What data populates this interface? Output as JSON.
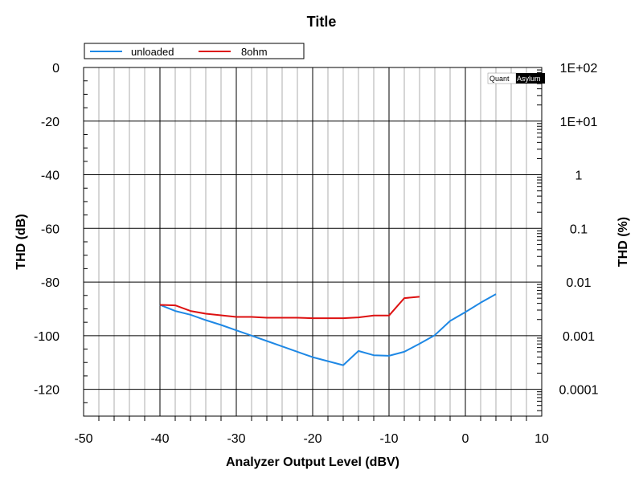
{
  "chart_data": {
    "type": "line",
    "title": "Title",
    "xlabel": "Analyzer Output Level (dBV)",
    "ylabel": "THD (dB)",
    "y2label": "THD (%)",
    "xlim": [
      -50,
      10
    ],
    "ylim": [
      -130,
      0
    ],
    "x_ticks": [
      "-50",
      "-40",
      "-30",
      "-20",
      "-10",
      "0",
      "10"
    ],
    "y_ticks": [
      "0",
      "-20",
      "-40",
      "-60",
      "-80",
      "-100",
      "-120"
    ],
    "y2_ticks": [
      "1E+02",
      "1E+01",
      "1",
      "0.1",
      "0.01",
      "0.001",
      "0.0001"
    ],
    "grid": true,
    "legend_position": "top-left",
    "logo": {
      "part1": "Quant",
      "part2": "Asylum"
    },
    "series": [
      {
        "name": "unloaded",
        "color": "#1e88e5",
        "x": [
          -40,
          -38,
          -36,
          -34,
          -32,
          -30,
          -28,
          -26,
          -24,
          -22,
          -20,
          -18,
          -16,
          -14,
          -12,
          -10,
          -8,
          -6,
          -4,
          -2,
          0,
          2,
          4
        ],
        "y": [
          -88.5,
          -90.8,
          -92.2,
          -94.2,
          -96.0,
          -98.0,
          -100.0,
          -102.0,
          -104.0,
          -106.0,
          -108.0,
          -109.5,
          -111.0,
          -105.7,
          -107.3,
          -107.5,
          -106.0,
          -103.0,
          -99.8,
          -94.5,
          -91.2,
          -87.7,
          -84.5
        ]
      },
      {
        "name": "8ohm",
        "color": "#dd1111",
        "x": [
          -40,
          -38,
          -36,
          -34,
          -32,
          -30,
          -28,
          -26,
          -24,
          -22,
          -20,
          -18,
          -16,
          -14,
          -12,
          -10,
          -8,
          -6
        ],
        "y": [
          -88.5,
          -88.7,
          -90.8,
          -91.8,
          -92.4,
          -93.0,
          -93.0,
          -93.3,
          -93.3,
          -93.3,
          -93.5,
          -93.5,
          -93.5,
          -93.2,
          -92.5,
          -92.5,
          -86.0,
          -85.5
        ]
      }
    ]
  }
}
